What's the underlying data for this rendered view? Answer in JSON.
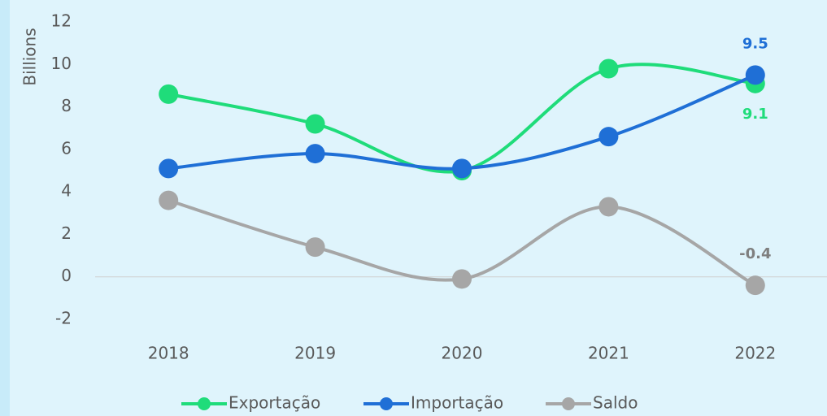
{
  "chart_data": {
    "type": "line",
    "y_axis_label": "Billions",
    "categories": [
      "2018",
      "2019",
      "2020",
      "2021",
      "2022"
    ],
    "series": [
      {
        "name": "Exportação",
        "color": "#1fdc7a",
        "values": [
          8.6,
          7.2,
          5.0,
          9.8,
          9.1
        ],
        "value_labels": [
          null,
          null,
          null,
          null,
          "9.1"
        ],
        "label_position": "below"
      },
      {
        "name": "Importação",
        "color": "#1f6fd6",
        "values": [
          5.1,
          5.8,
          5.1,
          6.6,
          9.5
        ],
        "value_labels": [
          null,
          null,
          null,
          null,
          "9.5"
        ],
        "label_position": "above"
      },
      {
        "name": "Saldo",
        "color": "#a6a6a6",
        "values": [
          3.6,
          1.4,
          -0.1,
          3.3,
          -0.4
        ],
        "value_labels": [
          null,
          null,
          null,
          null,
          "-0.4"
        ],
        "label_position": "above"
      }
    ],
    "ylim": [
      -2,
      12
    ],
    "yticks": [
      -2,
      0,
      2,
      4,
      6,
      8,
      10,
      12
    ],
    "smooth": true,
    "legend": "bottom"
  }
}
